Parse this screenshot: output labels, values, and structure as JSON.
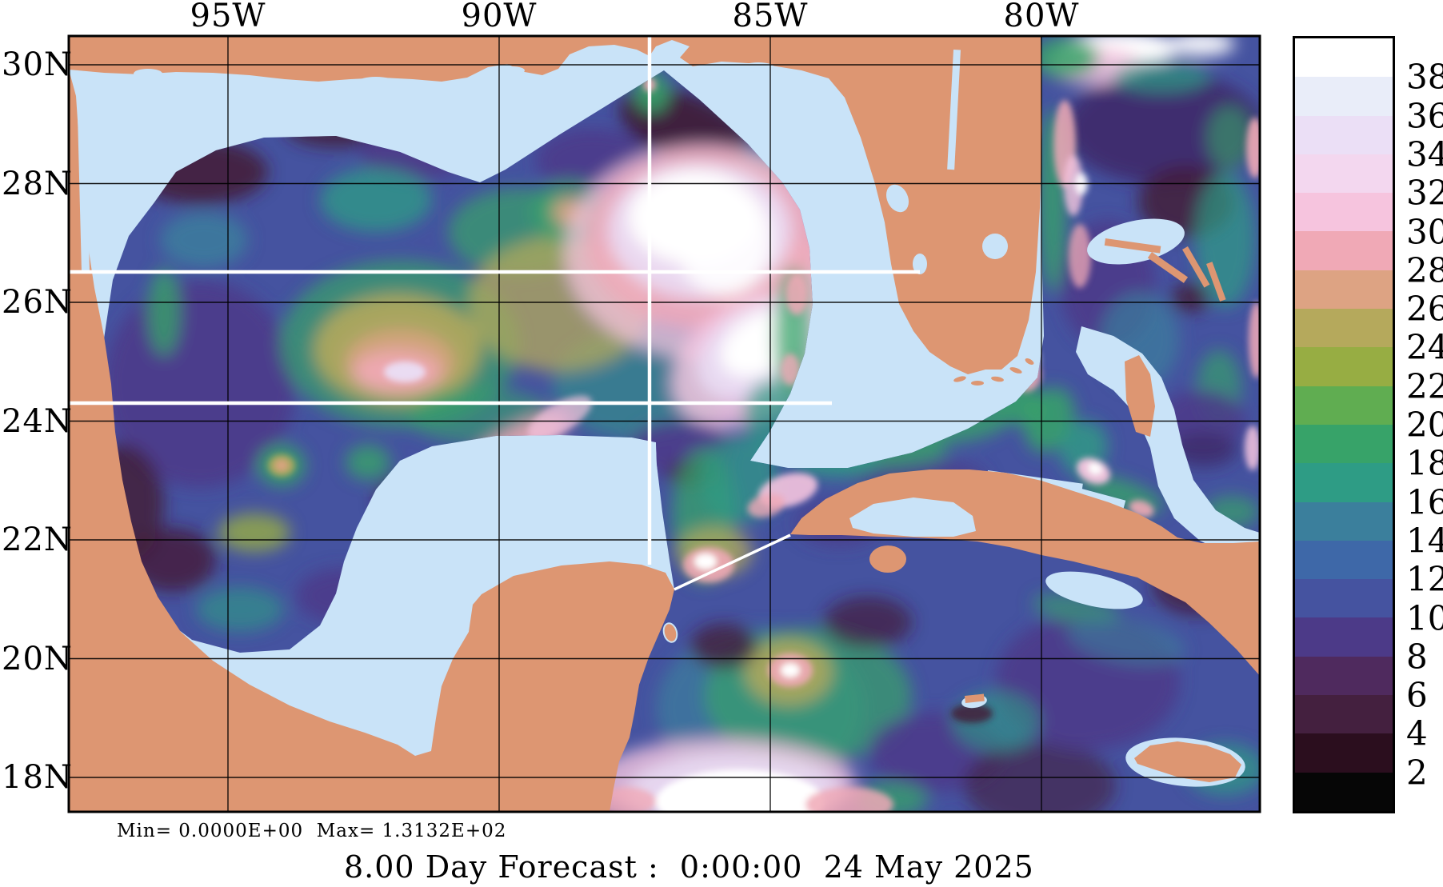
{
  "figure": {
    "title": "8.00 Day Forecast :  0:00:00  24 May 2025",
    "stats": "Min= 0.0000E+00  Max= 1.3132E+02"
  },
  "axes": {
    "top_labels": [
      "95W",
      "90W",
      "85W",
      "80W"
    ],
    "left_labels": [
      "30N",
      "28N",
      "26N",
      "24N",
      "22N",
      "20N",
      "18N"
    ]
  },
  "colorbar": {
    "tick_labels": [
      "38",
      "36",
      "34",
      "32",
      "30",
      "28",
      "26",
      "24",
      "22",
      "20",
      "18",
      "16",
      "14",
      "12",
      "10",
      "8",
      "6",
      "4",
      "2"
    ],
    "colors_top_to_bottom": [
      "#ffffff",
      "#e9edf9",
      "#ebdff6",
      "#f3d7ef",
      "#f6c4de",
      "#f0a9b6",
      "#dda383",
      "#b5a95c",
      "#97ad43",
      "#60ad51",
      "#37a369",
      "#2e9c85",
      "#3b7f9c",
      "#3e68a8",
      "#4553a0",
      "#4c3a88",
      "#4f2a5e",
      "#44203f",
      "#2b0e1e",
      "#060606"
    ]
  },
  "map_colors": {
    "land": "#dd9672",
    "shelf_water": "#c9e3f8",
    "deep_water_base": "#4553a0",
    "grid_line": "#000000",
    "track_line": "#ffffff"
  }
}
